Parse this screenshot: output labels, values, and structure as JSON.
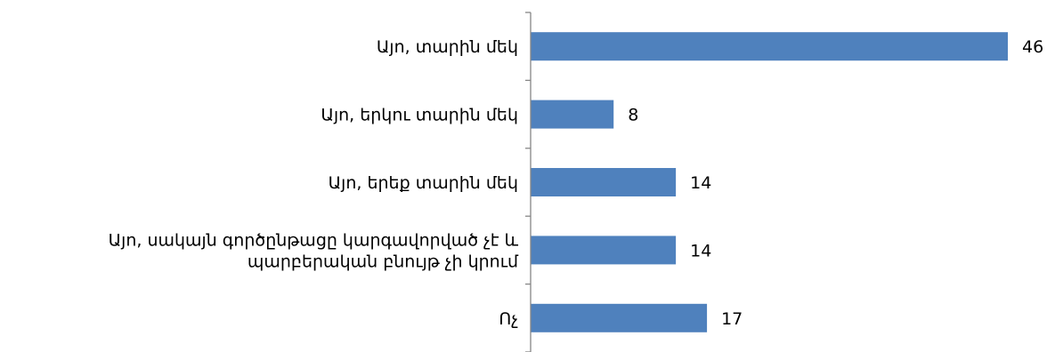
{
  "chart_data": {
    "type": "bar",
    "orientation": "horizontal",
    "categories": [
      [
        "Այո, տարին մեկ"
      ],
      [
        "Այո, երկու տարին մեկ"
      ],
      [
        "Այո, երեք տարին մեկ"
      ],
      [
        "Այո, սակայն գործընթացը կարգավորված չէ և",
        "պարբերական բնույթ չի կրում"
      ],
      [
        "Ոչ"
      ]
    ],
    "values": [
      46,
      8,
      14,
      14,
      17
    ],
    "xlim": [
      0,
      46
    ],
    "grid": false,
    "legend": false,
    "data_labels": true,
    "bar_color": "#4F81BD"
  }
}
